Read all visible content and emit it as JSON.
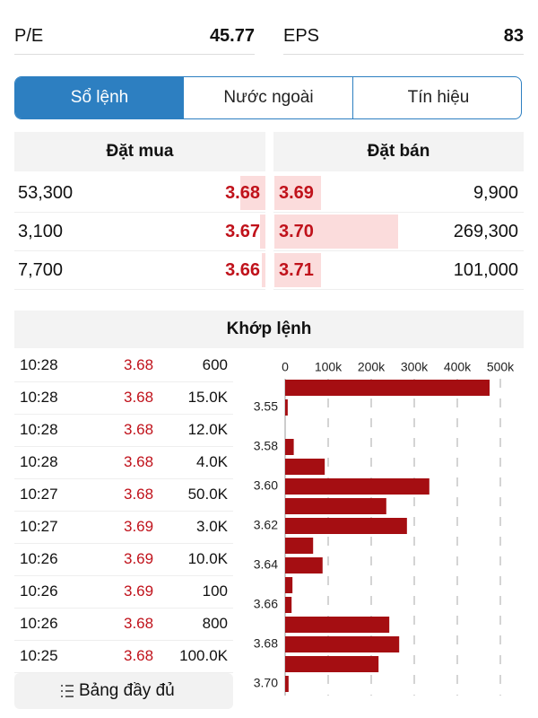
{
  "stats": [
    {
      "label": "P/E",
      "value": "45.77"
    },
    {
      "label": "EPS",
      "value": "83"
    }
  ],
  "tabs": [
    "Sổ lệnh",
    "Nước ngoài",
    "Tín hiệu"
  ],
  "order_book": {
    "buy_header": "Đặt mua",
    "sell_header": "Đặt bán",
    "rows": [
      {
        "buy_volume": "53,300",
        "buy_price": "3.68",
        "sell_price": "3.69",
        "sell_volume": "9,900"
      },
      {
        "buy_volume": "3,100",
        "buy_price": "3.67",
        "sell_price": "3.70",
        "sell_volume": "269,300"
      },
      {
        "buy_volume": "7,700",
        "buy_price": "3.66",
        "sell_price": "3.71",
        "sell_volume": "101,000"
      }
    ]
  },
  "matched": {
    "title": "Khớp lệnh",
    "button": "Bảng đầy đủ",
    "trades": [
      [
        "10:28",
        "3.68",
        "600"
      ],
      [
        "10:28",
        "3.68",
        "15.0K"
      ],
      [
        "10:28",
        "3.68",
        "12.0K"
      ],
      [
        "10:28",
        "3.68",
        "4.0K"
      ],
      [
        "10:27",
        "3.68",
        "50.0K"
      ],
      [
        "10:27",
        "3.69",
        "3.0K"
      ],
      [
        "10:26",
        "3.69",
        "10.0K"
      ],
      [
        "10:26",
        "3.69",
        "100"
      ],
      [
        "10:26",
        "3.68",
        "800"
      ],
      [
        "10:25",
        "3.68",
        "100.0K"
      ]
    ]
  },
  "chart_data": {
    "type": "bar",
    "orientation": "horizontal",
    "categories": [
      null,
      "3.55",
      null,
      "3.58",
      null,
      "3.60",
      null,
      "3.62",
      null,
      "3.64",
      null,
      "3.66",
      null,
      "3.68",
      null,
      "3.70"
    ],
    "values": [
      475000,
      6000,
      0,
      20000,
      92000,
      335000,
      235000,
      283000,
      65000,
      87000,
      17000,
      15000,
      242000,
      265000,
      217000,
      8000
    ],
    "color": "#a50e12",
    "xlim": [
      0,
      500000
    ],
    "xticks": [
      0,
      {
        "value": 100000,
        "label": "100k"
      },
      {
        "value": 200000,
        "label": "200k"
      },
      {
        "value": 300000,
        "label": "300k"
      },
      {
        "value": 400000,
        "label": "400k"
      },
      {
        "value": 500000,
        "label": "500k"
      }
    ],
    "grid": true
  }
}
